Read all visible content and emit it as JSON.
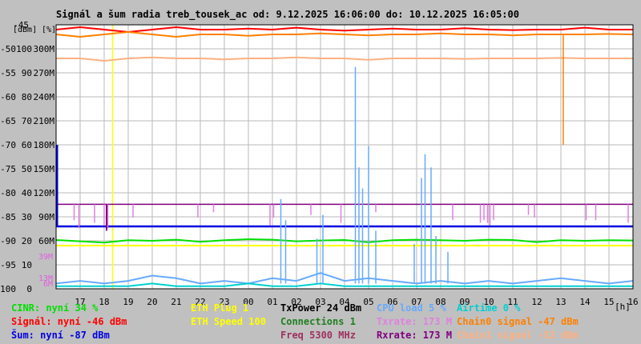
{
  "chart_data": {
    "type": "line",
    "title": "Signál a šum radia treb_tousek_ac od: 9.12.2025 16:06:00 do: 10.12.2025 16:05:00",
    "x_unit": "[h]",
    "x_ticks": [
      "17",
      "18",
      "19",
      "20",
      "21",
      "22",
      "23",
      "00",
      "01",
      "02",
      "03",
      "04",
      "05",
      "06",
      "07",
      "08",
      "09",
      "10",
      "11",
      "12",
      "13",
      "14",
      "15",
      "16"
    ],
    "xlim": [
      16.0,
      40.0
    ],
    "y_scales": {
      "dbm": {
        "unit": "[dBm]",
        "ticks": [
          "-45",
          "-50",
          "-55",
          "-60",
          "-65",
          "-70",
          "-75",
          "-80",
          "-85",
          "-90",
          "-95",
          "-100"
        ]
      },
      "percent": {
        "unit": "[%]",
        "ticks": [
          "100",
          "90",
          "80",
          "70",
          "60",
          "50",
          "40",
          "30",
          "20",
          "10",
          "0"
        ]
      },
      "rate": {
        "ticks": [
          "300M",
          "270M",
          "240M",
          "210M",
          "180M",
          "150M",
          "120M",
          "90M",
          "60M"
        ]
      },
      "cpu": {
        "ticks": [
          "39M",
          "13M",
          "6M"
        ]
      }
    },
    "ylim_dbm": [
      -100,
      -45
    ],
    "grid": true,
    "markers": {
      "vertical_hour": 18.35,
      "horizontal_dbm": -91
    },
    "series": [
      {
        "name": "Signál",
        "color": "#ff0000",
        "values_dbm": [
          -46,
          -45.5,
          -46,
          -46.5,
          -46,
          -45.5,
          -46,
          -46,
          -45.8,
          -46,
          -45.6,
          -46,
          -46.2,
          -46,
          -45.8,
          -46,
          -46,
          -45.7,
          -46,
          -46.1,
          -46,
          -46,
          -45.6,
          -46,
          -46
        ]
      },
      {
        "name": "Chain0 signal",
        "color": "#ff8000",
        "values_dbm": [
          -47,
          -47.5,
          -47,
          -46.5,
          -47,
          -47.5,
          -47,
          -47,
          -47.3,
          -47,
          -47,
          -46.8,
          -47,
          -47.2,
          -47,
          -47,
          -46.8,
          -47,
          -47,
          -47.2,
          -47,
          -47,
          -47,
          -46.9,
          -47
        ]
      },
      {
        "name": "Chain1 signal",
        "color": "#ffb080",
        "values_dbm": [
          -52,
          -52,
          -52.5,
          -52,
          -51.8,
          -52,
          -52,
          -52.2,
          -52,
          -52,
          -51.8,
          -52,
          -52,
          -52.3,
          -52,
          -52,
          -52,
          -52.1,
          -52,
          -52,
          -52,
          -51.9,
          -52,
          -52,
          -52
        ]
      },
      {
        "name": "Rxrate",
        "color": "#800080",
        "values_pct": [
          32,
          32,
          32,
          32,
          32,
          32,
          32,
          32,
          32,
          32,
          32,
          32,
          32,
          32,
          32,
          32,
          32,
          32,
          32,
          32,
          32,
          32,
          32,
          32,
          32
        ]
      },
      {
        "name": "CINR",
        "color": "#00e000",
        "values_pct": [
          18.5,
          18,
          17.5,
          18.4,
          18.2,
          18.6,
          17.8,
          18.4,
          18.8,
          18.6,
          18,
          18.3,
          18.5,
          17.6,
          18.4,
          18.6,
          18.4,
          18.2,
          18.6,
          18.5,
          17.7,
          18.4,
          18.2,
          18.4,
          18.3
        ]
      },
      {
        "name": "Šum",
        "color": "#0000e0",
        "values_dbm": [
          -87,
          -87,
          -87,
          -87,
          -87,
          -87,
          -87,
          -87,
          -87,
          -87,
          -87,
          -87,
          -87,
          -87,
          -87,
          -87,
          -87,
          -87,
          -87,
          -87,
          -87,
          -87,
          -87,
          -87,
          -87
        ]
      },
      {
        "name": "ETH Plug",
        "color": "#ffff00",
        "values_dbm": [
          -91,
          -91,
          -91,
          -91,
          -91,
          -91,
          -91,
          -91,
          -91,
          -91,
          -91,
          -91,
          -91,
          -91,
          -91,
          -91,
          -91,
          -91,
          -91,
          -91,
          -91,
          -91,
          -91,
          -91,
          -91
        ]
      },
      {
        "name": "CPU load",
        "color": "#66aaff",
        "values_pct": [
          2,
          3,
          2,
          3,
          5,
          4,
          2,
          3,
          2,
          4,
          3,
          6,
          3,
          4,
          3,
          2,
          3,
          2,
          3,
          2,
          3,
          4,
          3,
          2,
          3
        ]
      },
      {
        "name": "Airtime",
        "color": "#00d0d0",
        "values_pct": [
          1,
          1,
          1,
          1,
          2,
          1,
          1,
          1,
          2,
          1,
          1,
          2,
          1,
          1,
          1,
          1,
          1,
          1,
          1,
          1,
          1,
          1,
          1,
          1,
          1
        ]
      }
    ],
    "cpu_spikes": [
      {
        "hour": 25.35,
        "pct": 34
      },
      {
        "hour": 25.55,
        "pct": 26
      },
      {
        "hour": 26.85,
        "pct": 19
      },
      {
        "hour": 27.1,
        "pct": 28
      },
      {
        "hour": 28.45,
        "pct": 84
      },
      {
        "hour": 28.6,
        "pct": 46
      },
      {
        "hour": 28.75,
        "pct": 38
      },
      {
        "hour": 29.0,
        "pct": 54
      },
      {
        "hour": 29.3,
        "pct": 22
      },
      {
        "hour": 30.9,
        "pct": 17
      },
      {
        "hour": 31.2,
        "pct": 42
      },
      {
        "hour": 31.35,
        "pct": 51
      },
      {
        "hour": 31.6,
        "pct": 46
      },
      {
        "hour": 31.8,
        "pct": 20
      },
      {
        "hour": 32.3,
        "pct": 14
      }
    ],
    "txrate_dips": [
      {
        "hour": 16.75,
        "pct": 26
      },
      {
        "hour": 16.95,
        "pct": 23
      },
      {
        "hour": 17.6,
        "pct": 25
      },
      {
        "hour": 18.0,
        "pct": 24
      },
      {
        "hour": 18.15,
        "pct": 23
      },
      {
        "hour": 19.2,
        "pct": 27
      },
      {
        "hour": 21.9,
        "pct": 27
      },
      {
        "hour": 22.55,
        "pct": 29
      },
      {
        "hour": 24.9,
        "pct": 24
      },
      {
        "hour": 25.05,
        "pct": 27
      },
      {
        "hour": 26.6,
        "pct": 28
      },
      {
        "hour": 27.85,
        "pct": 25
      },
      {
        "hour": 29.3,
        "pct": 29
      },
      {
        "hour": 32.5,
        "pct": 26
      },
      {
        "hour": 33.65,
        "pct": 25
      },
      {
        "hour": 33.8,
        "pct": 26
      },
      {
        "hour": 33.95,
        "pct": 25
      },
      {
        "hour": 34.05,
        "pct": 24
      },
      {
        "hour": 34.2,
        "pct": 26
      },
      {
        "hour": 35.65,
        "pct": 28
      },
      {
        "hour": 35.9,
        "pct": 27
      },
      {
        "hour": 38.05,
        "pct": 26
      },
      {
        "hour": 38.45,
        "pct": 26
      },
      {
        "hour": 39.8,
        "pct": 25
      }
    ],
    "rxrate_dips": [
      {
        "hour": 18.1,
        "pct": 22
      }
    ],
    "noise_spikes": [
      {
        "hour": 16.05,
        "dbm": -70
      }
    ],
    "chain0_dip": {
      "hour": 37.1,
      "dbm": -70
    },
    "legend": {
      "col1": [
        {
          "text": "CINR: nyní 34 %",
          "color": "#00e000"
        },
        {
          "text": "Signál: nyní -46 dBm",
          "color": "#ff0000"
        },
        {
          "text": "Šum: nyní -87 dBm",
          "color": "#0000e0"
        }
      ],
      "col2": [
        {
          "text": "ETH Plug 1",
          "color": "#ffff00"
        },
        {
          "text": "ETH Speed 100",
          "color": "#ffff00"
        }
      ],
      "col3": [
        {
          "text": "TxPower 24 dBm",
          "color": "#000000"
        },
        {
          "text": "Connections 1",
          "color": "#208020"
        },
        {
          "text": "Freq 5300 MHz",
          "color": "#a03060"
        }
      ],
      "col4": [
        {
          "text": "CPU load 5 %",
          "color": "#66aaff"
        },
        {
          "text": "Txrate: 173 M",
          "color": "#e080e0"
        },
        {
          "text": "Rxrate: 173 M",
          "color": "#800080"
        }
      ],
      "col5": [
        {
          "text": "Airtime 0 %",
          "color": "#00d0d0"
        },
        {
          "text": "Chain0 signal -47 dBm",
          "color": "#ff8000"
        },
        {
          "text": "Chain1 signal -52 dBm",
          "color": "#ffb080"
        }
      ]
    }
  }
}
